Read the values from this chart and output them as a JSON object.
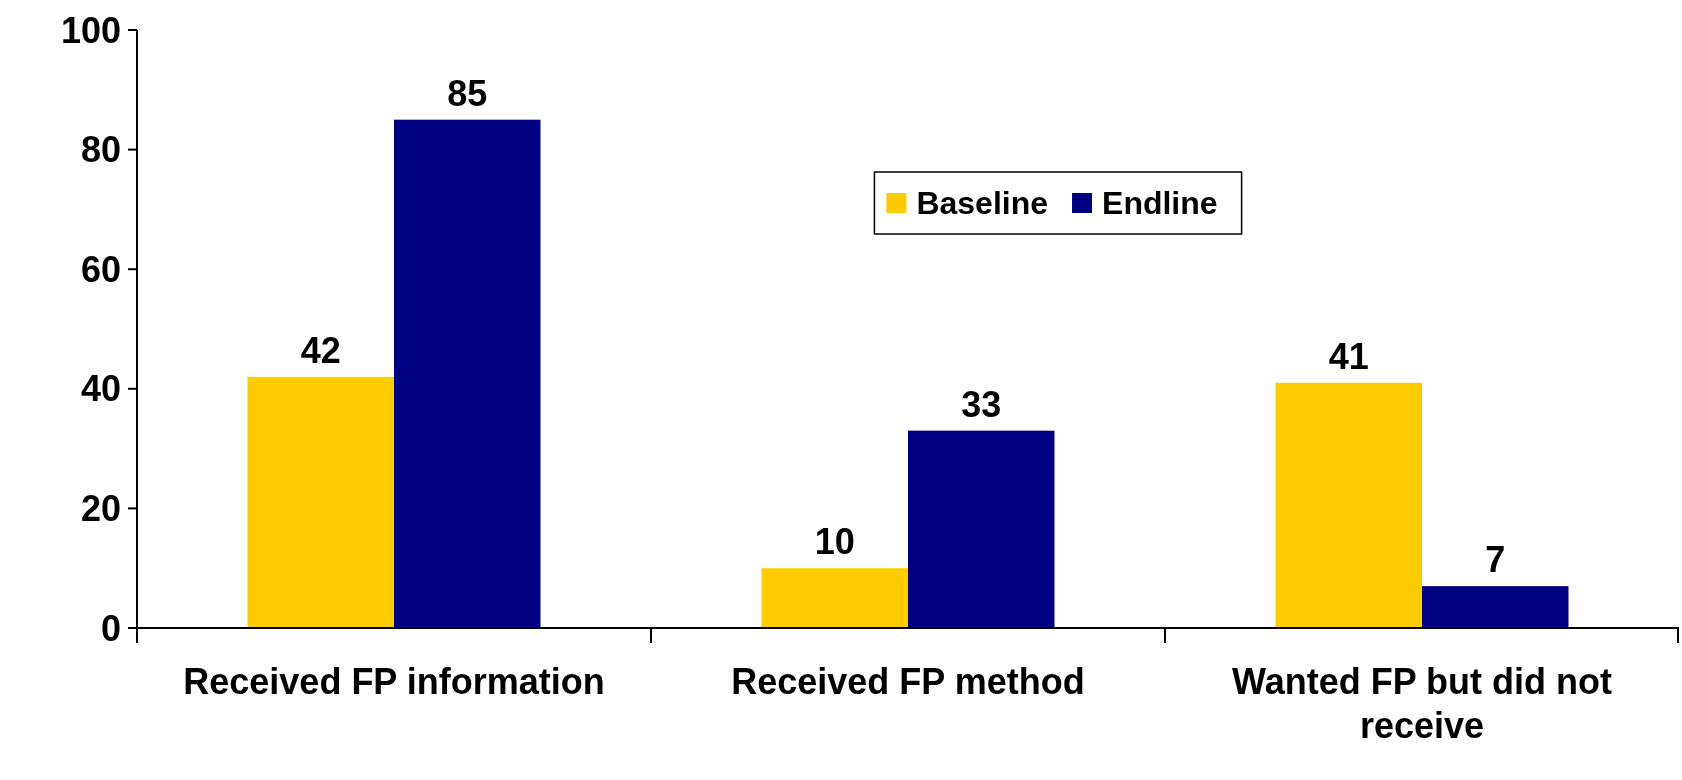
{
  "chart_data": {
    "type": "bar",
    "categories": [
      "Received FP information",
      "Received FP method",
      "Wanted FP but did not receive"
    ],
    "series": [
      {
        "name": "Baseline",
        "color": "#ffcc00",
        "values": [
          42,
          10,
          41
        ]
      },
      {
        "name": "Endline",
        "color": "#000080",
        "values": [
          85,
          33,
          7
        ]
      }
    ],
    "ylim": [
      0,
      100
    ],
    "yticks": [
      0,
      20,
      40,
      60,
      80,
      100
    ],
    "data_labels": true,
    "legend": "top",
    "grid": false
  }
}
